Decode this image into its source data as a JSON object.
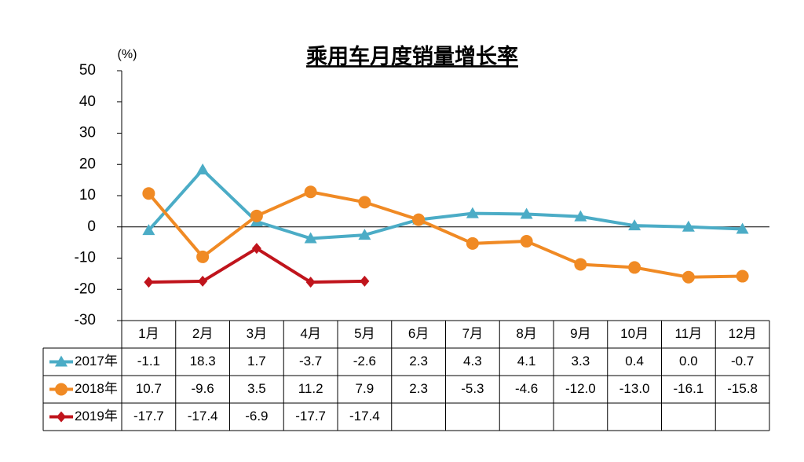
{
  "chart_data": {
    "type": "line",
    "title": "乘用车月度销量增长率",
    "y_label": "(%)",
    "categories": [
      "1月",
      "2月",
      "3月",
      "4月",
      "5月",
      "6月",
      "7月",
      "8月",
      "9月",
      "10月",
      "11月",
      "12月"
    ],
    "series": [
      {
        "name": "2017年",
        "color": "#4bacc6",
        "marker": "triangle",
        "values": [
          -1.1,
          18.3,
          1.7,
          -3.7,
          -2.6,
          2.3,
          4.3,
          4.1,
          3.3,
          0.4,
          0.0,
          -0.7
        ],
        "value_labels": [
          "-1.1",
          "18.3",
          "1.7",
          "-3.7",
          "-2.6",
          "2.3",
          "4.3",
          "4.1",
          "3.3",
          "0.4",
          "0.0",
          "-0.7"
        ]
      },
      {
        "name": "2018年",
        "color": "#f08a24",
        "marker": "circle",
        "values": [
          10.7,
          -9.6,
          3.5,
          11.2,
          7.9,
          2.3,
          -5.3,
          -4.6,
          -12.0,
          -13.0,
          -16.1,
          -15.8
        ],
        "value_labels": [
          "10.7",
          "-9.6",
          "3.5",
          "11.2",
          "7.9",
          "2.3",
          "-5.3",
          "-4.6",
          "-12.0",
          "-13.0",
          "-16.1",
          "-15.8"
        ]
      },
      {
        "name": "2019年",
        "color": "#c0141c",
        "marker": "diamond",
        "values": [
          -17.7,
          -17.4,
          -6.9,
          -17.7,
          -17.4,
          null,
          null,
          null,
          null,
          null,
          null,
          null
        ],
        "value_labels": [
          "-17.7",
          "-17.4",
          "-6.9",
          "-17.7",
          "-17.4",
          null,
          null,
          null,
          null,
          null,
          null,
          null
        ]
      }
    ],
    "ylim": [
      -30,
      50
    ],
    "yticks": [
      -30,
      -20,
      -10,
      0,
      10,
      20,
      30,
      40,
      50
    ],
    "grid": false,
    "zero_line": true
  }
}
